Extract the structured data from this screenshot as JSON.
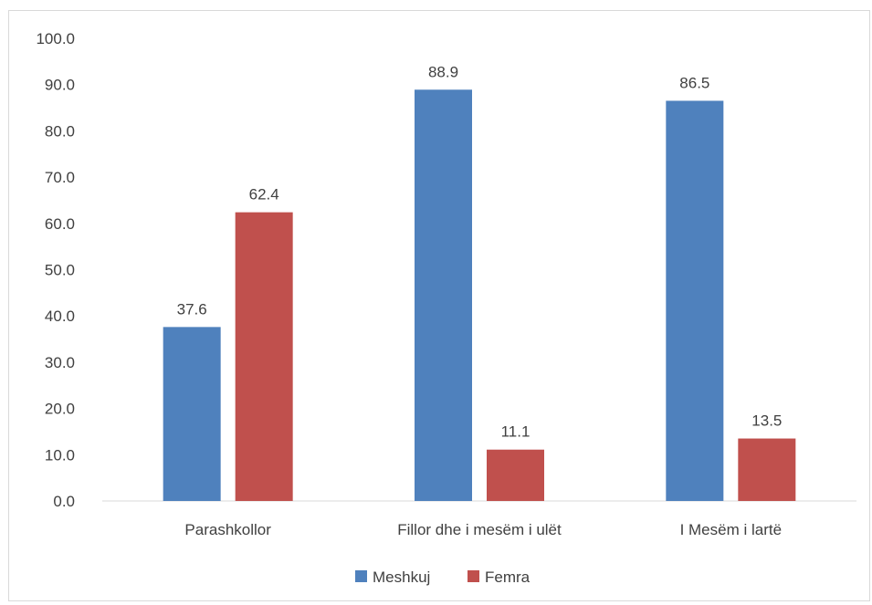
{
  "chart_data": {
    "type": "bar",
    "categories": [
      "Parashkollor",
      "Fillor dhe i mesëm i ulët",
      "I Mesëm i lartë"
    ],
    "series": [
      {
        "name": "Meshkuj",
        "values": [
          37.6,
          88.9,
          86.5
        ],
        "color": "#4f81bd"
      },
      {
        "name": "Femra",
        "values": [
          62.4,
          11.1,
          13.5
        ],
        "color": "#c0504d"
      }
    ],
    "ylim": [
      0,
      100
    ],
    "yticks": [
      "0.0",
      "10.0",
      "20.0",
      "30.0",
      "40.0",
      "50.0",
      "60.0",
      "70.0",
      "80.0",
      "90.0",
      "100.0"
    ],
    "data_labels": [
      [
        "37.6",
        "88.9",
        "86.5"
      ],
      [
        "62.4",
        "11.1",
        "13.5"
      ]
    ],
    "grid": false,
    "legend_position": "bottom"
  }
}
